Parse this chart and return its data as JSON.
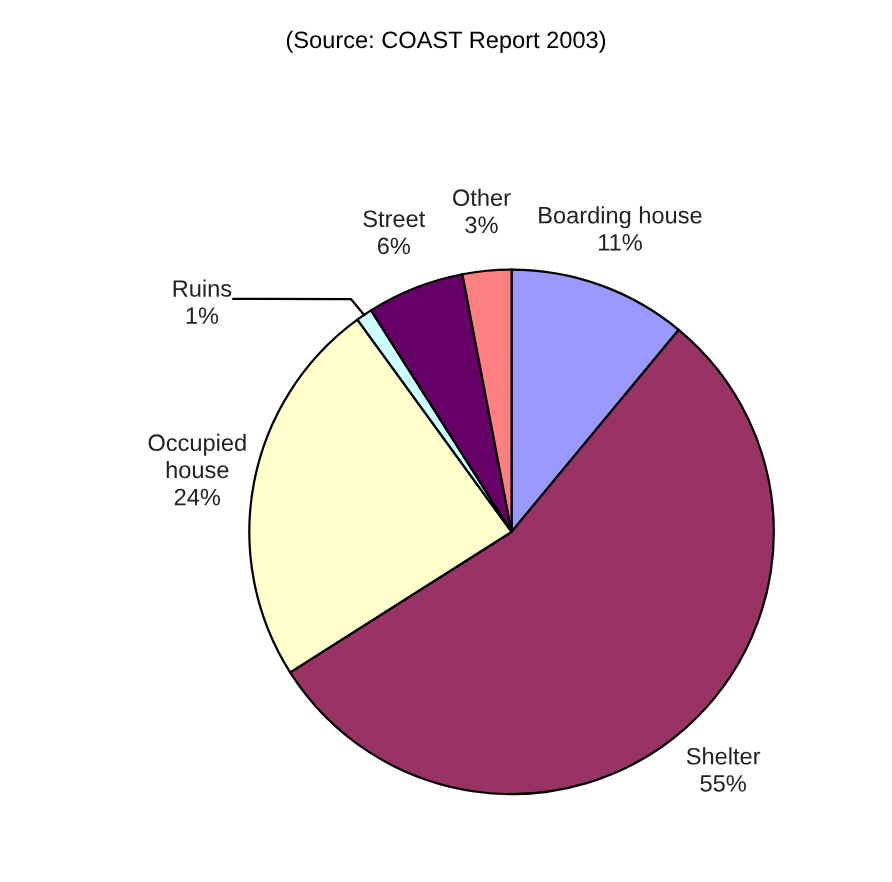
{
  "chart_data": {
    "type": "pie",
    "subtitle": "(Source: COAST Report 2003)",
    "categories": [
      "Boarding house",
      "Shelter",
      "Occupied house",
      "Ruins",
      "Street",
      "Other"
    ],
    "values": [
      11,
      55,
      24,
      1,
      6,
      3
    ],
    "value_labels": [
      "11%",
      "55%",
      "24%",
      "1%",
      "6%",
      "3%"
    ],
    "colors": [
      "#9999ff",
      "#993366",
      "#ffffcc",
      "#ccffff",
      "#660066",
      "#ff8080"
    ],
    "legend": false
  }
}
